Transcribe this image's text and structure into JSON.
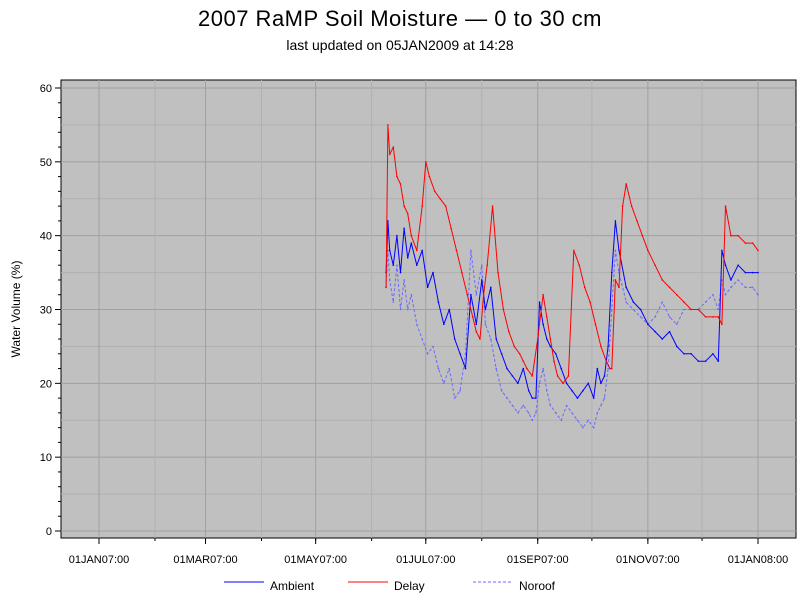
{
  "chart_data": {
    "type": "line",
    "title": "2007 RaMP Soil Moisture — 0 to 30 cm",
    "subtitle": "last updated on 05JAN2009 at 14:28",
    "xlabel": "",
    "ylabel": "Water Volume (%)",
    "ylim": [
      0,
      60
    ],
    "yticks": [
      0,
      10,
      20,
      30,
      40,
      50,
      60
    ],
    "x_unit": "day of year 2007 (0 = 01JAN07)",
    "xlim": [
      -10,
      370
    ],
    "xticks": [
      {
        "day": 0,
        "label": "01JAN07:00"
      },
      {
        "day": 59,
        "label": "01MAR07:00"
      },
      {
        "day": 120,
        "label": "01MAY07:00"
      },
      {
        "day": 181,
        "label": "01JUL07:00"
      },
      {
        "day": 243,
        "label": "01SEP07:00"
      },
      {
        "day": 304,
        "label": "01NOV07:00"
      },
      {
        "day": 365,
        "label": "01JAN08:00"
      }
    ],
    "grid": true,
    "legend_position": "bottom",
    "background": "#c0c0c0",
    "series": [
      {
        "name": "Ambient",
        "color": "#0000ff",
        "style": "solid",
        "x": [
          159,
          160,
          161,
          163,
          165,
          167,
          169,
          171,
          173,
          176,
          179,
          182,
          185,
          188,
          191,
          194,
          197,
          200,
          203,
          206,
          209,
          212,
          214,
          217,
          220,
          223,
          226,
          229,
          232,
          235,
          238,
          240,
          242,
          244,
          246,
          248,
          250,
          253,
          256,
          259,
          262,
          265,
          268,
          271,
          274,
          276,
          278,
          280,
          282,
          284,
          286,
          288,
          292,
          296,
          300,
          304,
          308,
          312,
          316,
          320,
          324,
          328,
          332,
          336,
          340,
          343,
          345,
          347,
          350,
          354,
          358,
          362,
          365
        ],
        "y": [
          35,
          42,
          38,
          36,
          40,
          35,
          41,
          37,
          39,
          36,
          38,
          33,
          35,
          31,
          28,
          30,
          26,
          24,
          22,
          32,
          28,
          34,
          30,
          33,
          26,
          24,
          22,
          21,
          20,
          22,
          19,
          18,
          18,
          31,
          28,
          26,
          25,
          24,
          22,
          20,
          19,
          18,
          19,
          20,
          18,
          22,
          20,
          21,
          25,
          35,
          42,
          38,
          33,
          31,
          30,
          28,
          27,
          26,
          27,
          25,
          24,
          24,
          23,
          23,
          24,
          23,
          38,
          36,
          34,
          36,
          35,
          35,
          35
        ]
      },
      {
        "name": "Delay",
        "color": "#ff0000",
        "style": "solid",
        "x": [
          159,
          160,
          161,
          163,
          165,
          167,
          169,
          171,
          173,
          176,
          179,
          181,
          183,
          186,
          189,
          192,
          195,
          198,
          201,
          204,
          207,
          209,
          211,
          213,
          215,
          218,
          221,
          224,
          227,
          230,
          233,
          235,
          237,
          240,
          243,
          246,
          248,
          250,
          252,
          254,
          257,
          260,
          263,
          266,
          269,
          272,
          275,
          278,
          281,
          283,
          284,
          286,
          288,
          290,
          292,
          295,
          298,
          301,
          304,
          308,
          312,
          316,
          320,
          324,
          328,
          332,
          336,
          340,
          343,
          345,
          347,
          350,
          354,
          358,
          362,
          365
        ],
        "y": [
          33,
          55,
          51,
          52,
          48,
          47,
          44,
          43,
          40,
          38,
          44,
          50,
          48,
          46,
          45,
          44,
          41,
          38,
          35,
          32,
          29,
          27,
          26,
          32,
          36,
          44,
          35,
          30,
          27,
          25,
          24,
          23,
          22,
          21,
          26,
          32,
          29,
          26,
          23,
          21,
          20,
          21,
          38,
          36,
          33,
          31,
          28,
          25,
          23,
          22,
          22,
          34,
          33,
          44,
          47,
          44,
          42,
          40,
          38,
          36,
          34,
          33,
          32,
          31,
          30,
          30,
          29,
          29,
          29,
          28,
          44,
          40,
          40,
          39,
          39,
          38
        ]
      },
      {
        "name": "Noroof",
        "color": "#6a6aff",
        "style": "dashed",
        "x": [
          159,
          160,
          161,
          163,
          165,
          167,
          169,
          171,
          173,
          176,
          179,
          182,
          185,
          188,
          191,
          194,
          197,
          200,
          203,
          206,
          209,
          212,
          214,
          217,
          220,
          223,
          226,
          229,
          232,
          235,
          238,
          240,
          242,
          244,
          246,
          248,
          250,
          253,
          256,
          259,
          262,
          265,
          268,
          271,
          274,
          276,
          278,
          280,
          282,
          284,
          286,
          288,
          292,
          296,
          300,
          304,
          308,
          312,
          316,
          320,
          324,
          328,
          332,
          336,
          340,
          343,
          345,
          347,
          350,
          354,
          358,
          362,
          365
        ],
        "y": [
          33,
          38,
          34,
          31,
          36,
          30,
          34,
          30,
          32,
          28,
          26,
          24,
          25,
          22,
          20,
          22,
          18,
          19,
          24,
          38,
          32,
          36,
          28,
          26,
          22,
          19,
          18,
          17,
          16,
          17,
          16,
          15,
          16,
          20,
          22,
          19,
          17,
          16,
          15,
          17,
          16,
          15,
          14,
          15,
          14,
          16,
          17,
          18,
          22,
          30,
          38,
          35,
          31,
          30,
          29,
          28,
          29,
          31,
          29,
          28,
          30,
          30,
          30,
          31,
          32,
          30,
          34,
          32,
          33,
          34,
          33,
          33,
          32
        ]
      }
    ]
  }
}
